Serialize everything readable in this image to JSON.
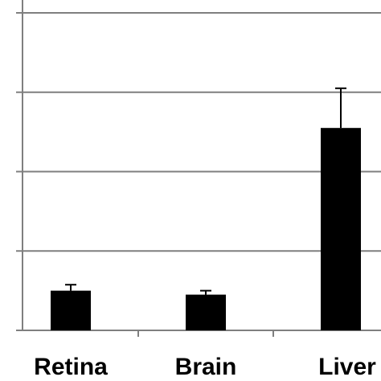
{
  "chart_data": {
    "type": "bar",
    "categories": [
      "Retina",
      "Brain",
      "Liver"
    ],
    "values": [
      1.0,
      0.9,
      5.1
    ],
    "errors": [
      0.15,
      0.1,
      1.0
    ],
    "ylim": [
      0,
      8
    ],
    "y_gridlines": [
      0,
      2,
      4,
      6,
      8
    ],
    "grid": true,
    "legend": "none",
    "bar_color": "#000000",
    "grid_color": "#7f7f7f"
  }
}
